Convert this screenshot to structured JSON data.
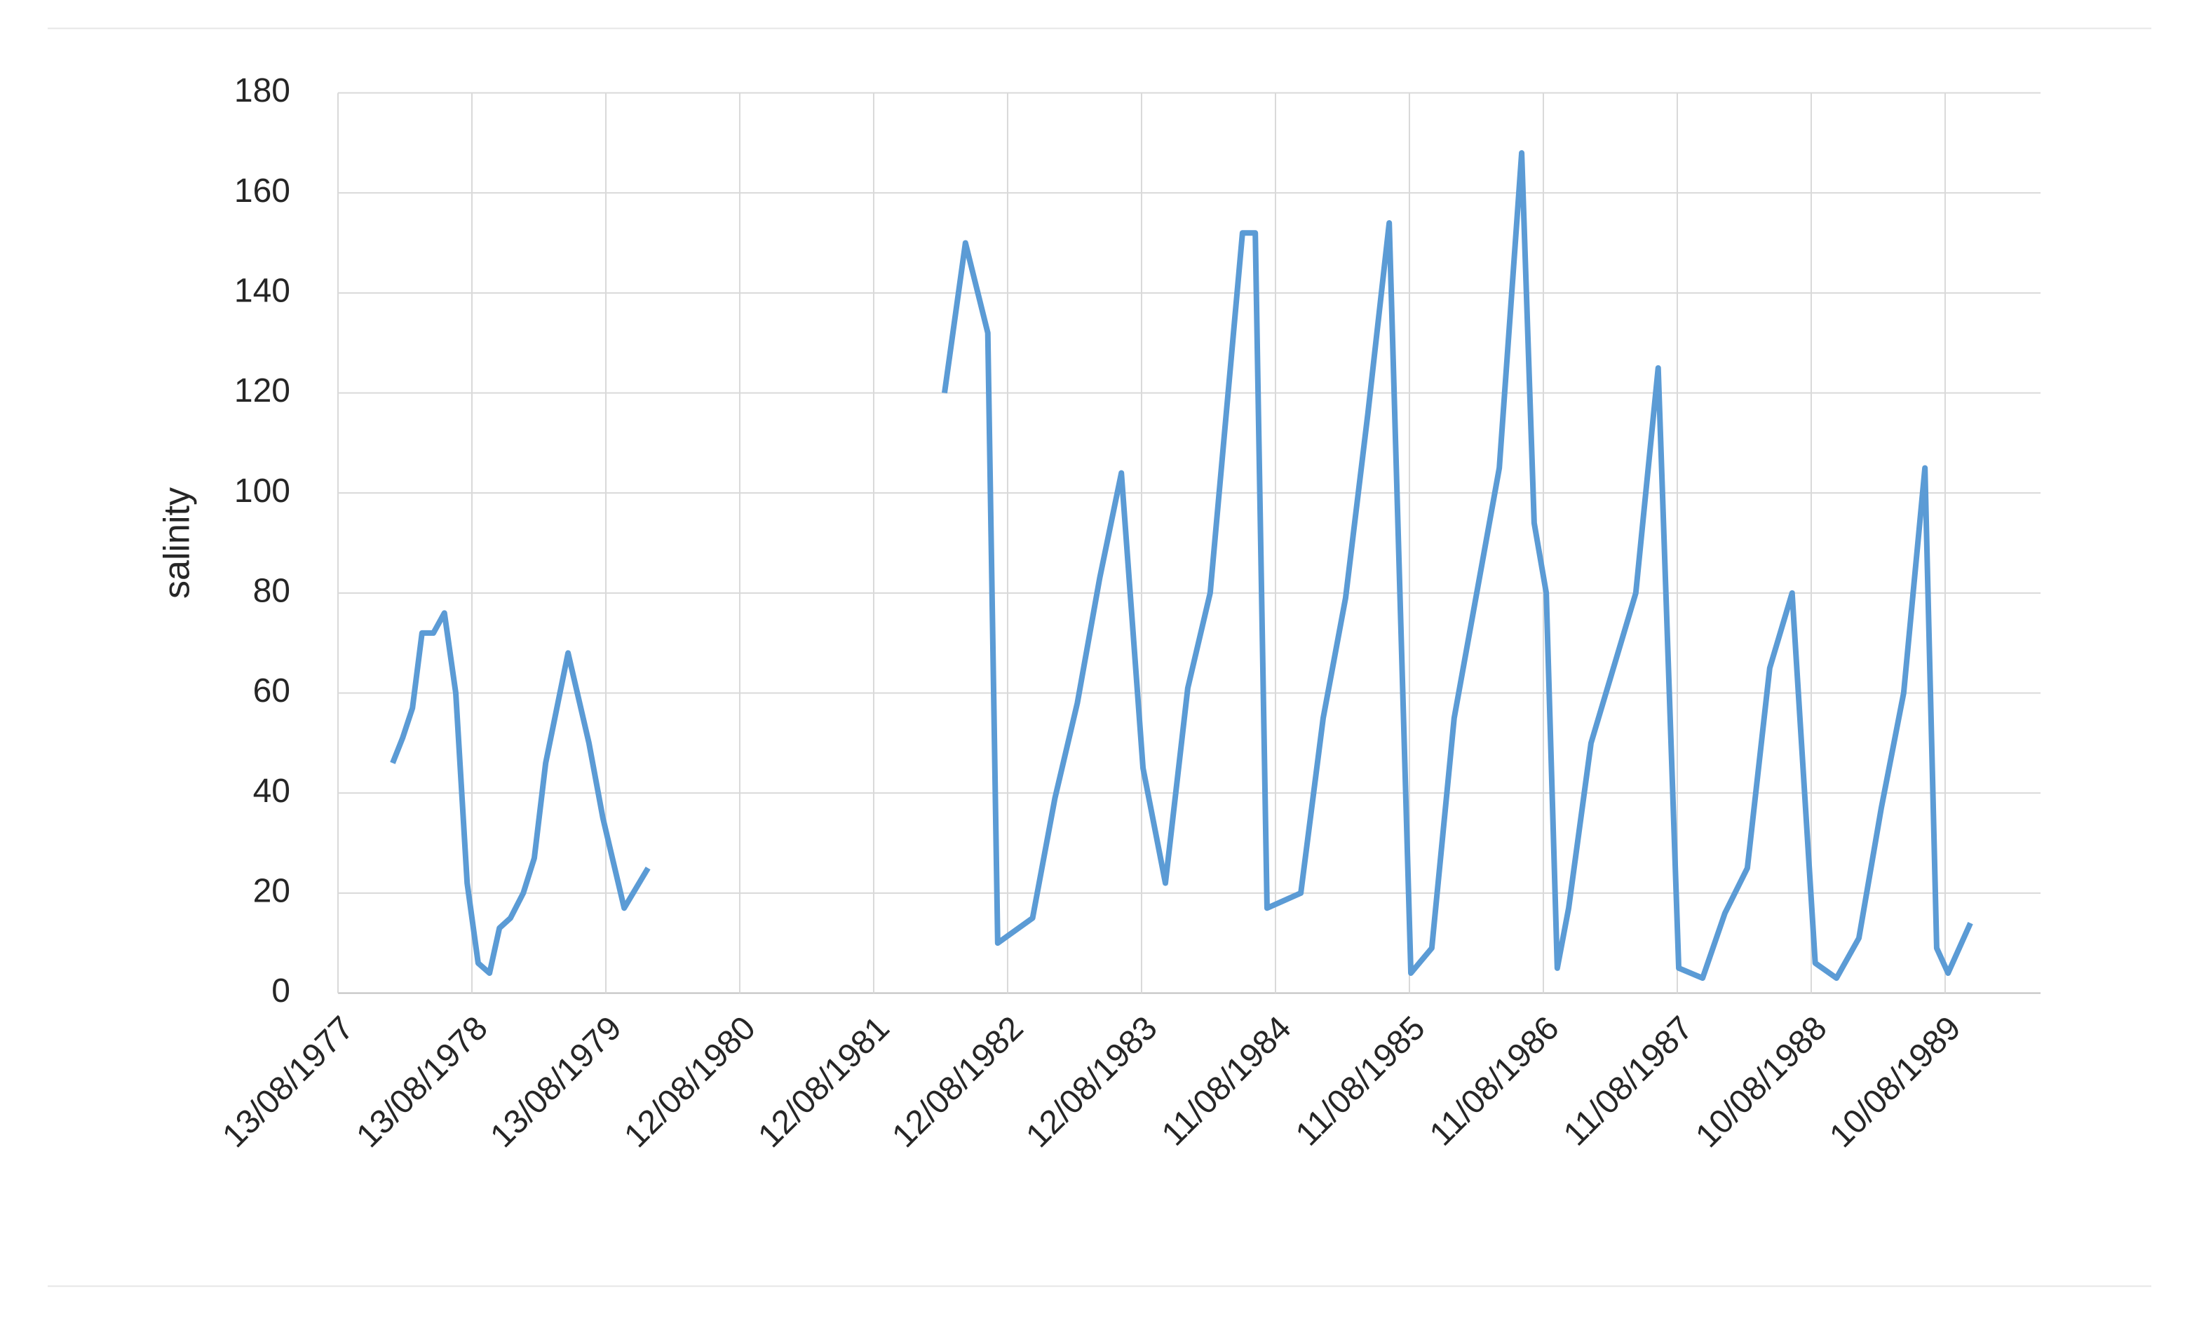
{
  "chart_data": {
    "type": "line",
    "y_label": "salinity",
    "xlim": [
      "13/08/1977",
      "27/04/1990"
    ],
    "xticks": [
      "13/08/1977",
      "13/08/1978",
      "13/08/1979",
      "12/08/1980",
      "12/08/1981",
      "12/08/1982",
      "12/08/1983",
      "11/08/1984",
      "11/08/1985",
      "11/08/1986",
      "11/08/1987",
      "10/08/1988",
      "10/08/1989"
    ],
    "ylim": [
      0,
      180
    ],
    "yticks": [
      0,
      20,
      40,
      60,
      80,
      100,
      120,
      140,
      160,
      180
    ],
    "grid": true,
    "x": [
      "09/01/1978",
      "05/02/1978",
      "04/03/1978",
      "30/03/1978",
      "30/04/1978",
      "30/05/1978",
      "30/06/1978",
      "31/07/1978",
      "30/08/1978",
      "30/09/1978",
      "27/10/1978",
      "26/11/1978",
      "31/12/1978",
      "30/01/1979",
      "02/03/1979",
      "02/05/1979",
      "28/06/1979",
      "05/08/1979",
      "02/10/1979",
      "06/12/1979",
      "12/08/1980",
      "21/02/1982",
      "19/04/1982",
      "19/06/1982",
      "16/07/1982",
      "19/10/1982",
      "19/12/1982",
      "18/02/1983",
      "20/04/1983",
      "18/06/1983",
      "16/08/1983",
      "16/10/1983",
      "16/12/1983",
      "15/02/1984",
      "13/05/1984",
      "17/06/1984",
      "19/07/1984",
      "19/10/1984",
      "19/12/1984",
      "18/02/1985",
      "20/04/1985",
      "17/06/1985",
      "15/08/1985",
      "11/10/1985",
      "11/12/1985",
      "13/04/1986",
      "13/06/1986",
      "17/07/1986",
      "19/08/1986",
      "18/09/1986",
      "19/10/1986",
      "19/12/1986",
      "20/04/1987",
      "20/06/1987",
      "15/08/1987",
      "19/10/1987",
      "19/12/1987",
      "18/02/1988",
      "19/04/1988",
      "19/06/1988",
      "21/08/1988",
      "18/10/1988",
      "18/12/1988",
      "17/02/1989",
      "19/04/1989",
      "16/06/1989",
      "18/07/1989",
      "18/08/1989",
      "18/10/1989"
    ],
    "series": [
      {
        "color": "#5b9bd5",
        "values": [
          46,
          51,
          57,
          72,
          72,
          76,
          60,
          22,
          6,
          4,
          13,
          15,
          20,
          27,
          46,
          68,
          50,
          35,
          17,
          25,
          null,
          120,
          150,
          132,
          10,
          15,
          39,
          58,
          83,
          104,
          45,
          22,
          61,
          80,
          152,
          152,
          17,
          20,
          55,
          79,
          116,
          154,
          4,
          9,
          55,
          105,
          168,
          94,
          80,
          5,
          17,
          50,
          80,
          125,
          5,
          3,
          16,
          25,
          65,
          80,
          6,
          3,
          11,
          37,
          60,
          105,
          9,
          4,
          14
        ]
      }
    ]
  }
}
